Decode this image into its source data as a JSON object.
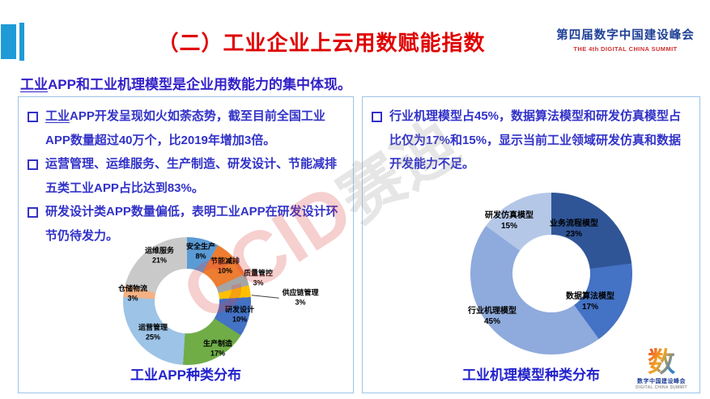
{
  "header": {
    "title": "（二）工业企业上云用数赋能指数",
    "logo_cn": "第四届数字中国建设峰会",
    "logo_en": "THE 4th DIGITAL CHINA SUMMIT"
  },
  "subtitle": {
    "underlined": "工业",
    "rest": "APP和工业机理模型是企业用数能力的集中体现。"
  },
  "left_panel": {
    "bullets": [
      {
        "head": "工业",
        "rest": "APP开发呈现如火如荼态势，截至目前全国工业APP数量超过40万个，比2019年增加3倍。"
      },
      {
        "head": "",
        "rest": "运营管理、运维服务、生产制造、研发设计、节能减排五类工业APP占比达到83%。"
      },
      {
        "head": "",
        "rest": "研发设计类APP数量偏低，表明工业APP在研发设计环节仍待发力。"
      }
    ]
  },
  "right_panel": {
    "bullets": [
      {
        "head": "",
        "rest": "行业机理模型占45%，数据算法模型和研发仿真模型占比仅为17%和15%，显示当前工业领域研发仿真和数据开发能力不足。"
      }
    ]
  },
  "watermark": {
    "latin": "CCID",
    "cjk": "赛迪"
  },
  "footer_logo": {
    "glyph": "数",
    "line1": "数字中国建设峰会",
    "line2": "DIGITAL CHINA SUMMIT"
  },
  "colors": {
    "accent_bar": "#1E9BD7",
    "title_red": "#E00000",
    "body_blue": "#3232C8",
    "panel_border": "#9DC3E6"
  },
  "chart_data": [
    {
      "type": "pie",
      "variant": "donut",
      "title": "工业APP种类分布",
      "legend_position": "none",
      "start_angle_deg": 0,
      "clockwise": true,
      "slices": [
        {
          "label": "安全生产",
          "value": 8,
          "pct": "8%",
          "color": "#5B9BD5"
        },
        {
          "label": "节能减排",
          "value": 10,
          "pct": "10%",
          "color": "#ED7D31"
        },
        {
          "label": "质量管控",
          "value": 3,
          "pct": "3%",
          "color": "#A5A5A5"
        },
        {
          "label": "供应链管理",
          "value": 3,
          "pct": "3%",
          "color": "#FFC000"
        },
        {
          "label": "研发设计",
          "value": 10,
          "pct": "10%",
          "color": "#4472C4"
        },
        {
          "label": "生产制造",
          "value": 17,
          "pct": "17%",
          "color": "#70AD47"
        },
        {
          "label": "运营管理",
          "value": 25,
          "pct": "25%",
          "color": "#9DC3E6"
        },
        {
          "label": "仓储物流",
          "value": 3,
          "pct": "3%",
          "color": "#F4B183"
        },
        {
          "label": "运维服务",
          "value": 21,
          "pct": "21%",
          "color": "#C9C9C9"
        }
      ]
    },
    {
      "type": "pie",
      "variant": "donut",
      "title": "工业机理模型种类分布",
      "legend_position": "none",
      "start_angle_deg": 0,
      "clockwise": true,
      "slices": [
        {
          "label": "业务流程模型",
          "value": 23,
          "pct": "23%",
          "color": "#2F5597"
        },
        {
          "label": "数据算法模型",
          "value": 17,
          "pct": "17%",
          "color": "#4472C4"
        },
        {
          "label": "行业机理模型",
          "value": 45,
          "pct": "45%",
          "color": "#8FAADC"
        },
        {
          "label": "研发仿真模型",
          "value": 15,
          "pct": "15%",
          "color": "#B4C7E7"
        }
      ]
    }
  ]
}
